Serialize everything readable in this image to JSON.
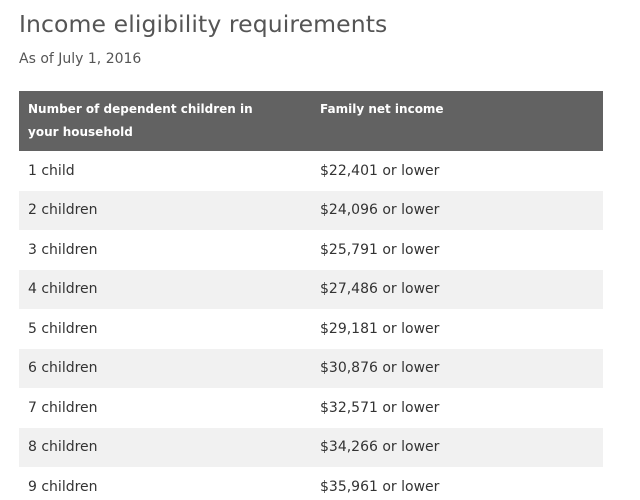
{
  "page": {
    "title": "Income eligibility requirements",
    "subtitle": "As of July 1, 2016"
  },
  "table": {
    "headers": [
      "Number of dependent children in your household",
      "Family net income"
    ],
    "rows": [
      {
        "children": "1 child",
        "income": "$22,401 or lower"
      },
      {
        "children": "2 children",
        "income": "$24,096 or lower"
      },
      {
        "children": "3 children",
        "income": "$25,791 or lower"
      },
      {
        "children": "4 children",
        "income": "$27,486 or lower"
      },
      {
        "children": "5 children",
        "income": "$29,181 or lower"
      },
      {
        "children": "6 children",
        "income": "$30,876 or lower"
      },
      {
        "children": "7 children",
        "income": "$32,571 or lower"
      },
      {
        "children": "8 children",
        "income": "$34,266 or lower"
      },
      {
        "children": "9 children",
        "income": "$35,961 or lower"
      }
    ]
  },
  "colors": {
    "header_bg": "#626262",
    "header_text": "#ffffff",
    "stripe_bg": "#f1f1f1",
    "body_text": "#333333",
    "title_text": "#555555"
  }
}
